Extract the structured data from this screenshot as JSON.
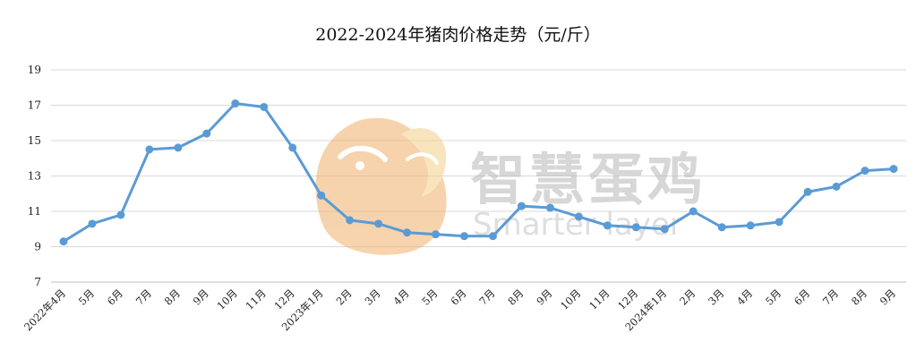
{
  "chart_data": {
    "type": "line",
    "title": "2022-2024年猪肉价格走势（元/斤）",
    "xlabel": "",
    "ylabel": "",
    "ylim": [
      7,
      19
    ],
    "yticks": [
      7,
      9,
      11,
      13,
      15,
      17,
      19
    ],
    "grid": true,
    "legend": "none",
    "line_color": "#5b9bd5",
    "categories": [
      "2022年4月",
      "5月",
      "6月",
      "7月",
      "8月",
      "9月",
      "10月",
      "11月",
      "12月",
      "2023年1月",
      "2月",
      "3月",
      "4月",
      "5月",
      "6月",
      "7月",
      "8月",
      "9月",
      "10月",
      "11月",
      "12月",
      "2024年1月",
      "2月",
      "3月",
      "4月",
      "5月",
      "6月",
      "7月",
      "8月",
      "9月"
    ],
    "values": [
      9.3,
      10.3,
      10.8,
      14.5,
      14.6,
      15.4,
      17.1,
      16.9,
      14.6,
      11.9,
      10.5,
      10.3,
      9.8,
      9.7,
      9.6,
      9.6,
      11.3,
      11.2,
      10.7,
      10.2,
      10.1,
      10.0,
      11.0,
      10.1,
      10.2,
      10.4,
      12.1,
      12.4,
      13.3,
      13.4
    ]
  },
  "watermark": {
    "brand_cn": "智慧蛋鸡",
    "brand_en": "Smarter layer",
    "icon": "egg-chick-logo-icon"
  }
}
